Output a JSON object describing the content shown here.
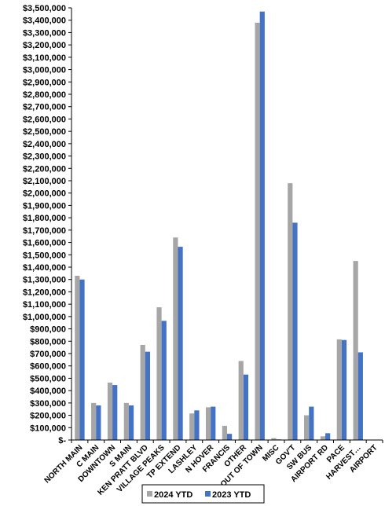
{
  "chart_data": {
    "type": "bar",
    "categories": [
      "NORTH MAIN",
      "C MAIN",
      "DOWNTOWN",
      "S MAIN",
      "KEN PRATT BLVD",
      "VILLAGE PEAKS",
      "TP EXTEND",
      "LASHLEY",
      "N HOVER",
      "FRANCIS",
      "OTHER",
      "OUT OF TOWN",
      "MISC",
      "GOV'T",
      "SW BUS",
      "AIRPORT RD",
      "PACE",
      "HARVEST…",
      "AIRPORT"
    ],
    "series": [
      {
        "name": "2024 YTD",
        "color": "#a6a6a6",
        "values": [
          1330000,
          300000,
          465000,
          300000,
          770000,
          1075000,
          1640000,
          215000,
          265000,
          115000,
          640000,
          3380000,
          15000,
          2080000,
          200000,
          30000,
          815000,
          1450000,
          0
        ]
      },
      {
        "name": "2023 YTD",
        "color": "#4472c4",
        "values": [
          1300000,
          280000,
          445000,
          280000,
          715000,
          965000,
          1565000,
          240000,
          270000,
          50000,
          530000,
          3470000,
          5000,
          1760000,
          270000,
          55000,
          810000,
          710000,
          0
        ]
      }
    ],
    "ylim": [
      0,
      3500000
    ],
    "ytick_step": 100000,
    "ytick_labels": [
      "$-",
      "$100,000",
      "$200,000",
      "$300,000",
      "$400,000",
      "$500,000",
      "$600,000",
      "$700,000",
      "$800,000",
      "$900,000",
      "$1,000,000",
      "$1,100,000",
      "$1,200,000",
      "$1,300,000",
      "$1,400,000",
      "$1,500,000",
      "$1,600,000",
      "$1,700,000",
      "$1,800,000",
      "$1,900,000",
      "$2,000,000",
      "$2,100,000",
      "$2,200,000",
      "$2,300,000",
      "$2,400,000",
      "$2,500,000",
      "$2,600,000",
      "$2,700,000",
      "$2,800,000",
      "$2,900,000",
      "$3,000,000",
      "$3,100,000",
      "$3,200,000",
      "$3,300,000",
      "$3,400,000",
      "$3,500,000"
    ],
    "title": "",
    "xlabel": "",
    "ylabel": "",
    "grid": false,
    "legend_position": "bottom"
  }
}
